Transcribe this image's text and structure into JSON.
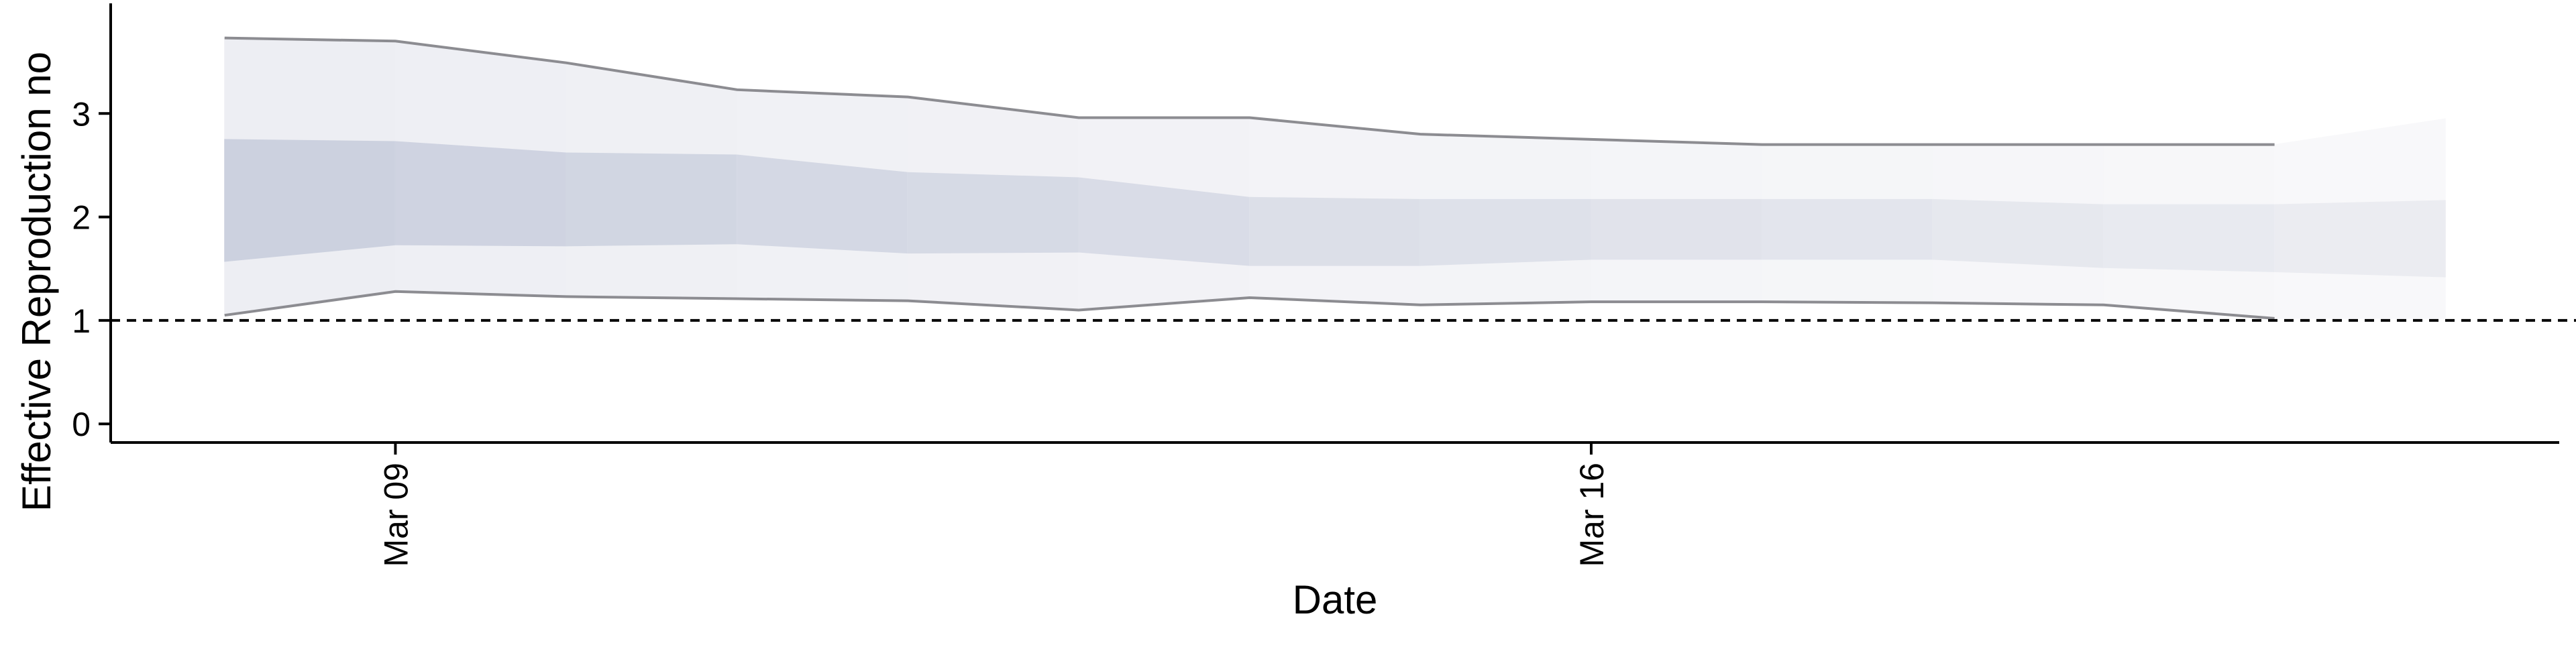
{
  "chart_data": {
    "type": "area",
    "title": "",
    "xlabel": "Date",
    "ylabel": "Effective Reproduction no",
    "x_ticks": [
      "Mar 09",
      "Mar 16"
    ],
    "x_tick_values": [
      "2020-03-09",
      "2020-03-16"
    ],
    "y_ticks": [
      "0",
      "1",
      "2",
      "3"
    ],
    "y_tick_values": [
      0,
      1,
      2,
      3
    ],
    "ylim": [
      -0.18,
      4.0
    ],
    "xlim": [
      "2020-03-07T08:00",
      "2020-03-21T16:00"
    ],
    "grid": false,
    "legend": "none",
    "reference_line": {
      "y": 1,
      "style": "dashed"
    },
    "dates": [
      "2020-03-08",
      "2020-03-09",
      "2020-03-10",
      "2020-03-11",
      "2020-03-12",
      "2020-03-13",
      "2020-03-14",
      "2020-03-15",
      "2020-03-16",
      "2020-03-17",
      "2020-03-18",
      "2020-03-19",
      "2020-03-20",
      "2020-03-21"
    ],
    "series": [
      {
        "role": "upper_95",
        "values": [
          3.73,
          3.7,
          3.49,
          3.23,
          3.16,
          2.96,
          2.96,
          2.8,
          2.75,
          2.7,
          2.7,
          2.7,
          2.7,
          2.95
        ]
      },
      {
        "role": "upper_50",
        "values": [
          2.75,
          2.73,
          2.62,
          2.6,
          2.43,
          2.38,
          2.19,
          2.17,
          2.17,
          2.17,
          2.17,
          2.12,
          2.12,
          2.16
        ]
      },
      {
        "role": "lower_50",
        "values": [
          1.57,
          1.73,
          1.72,
          1.74,
          1.65,
          1.66,
          1.53,
          1.53,
          1.59,
          1.59,
          1.59,
          1.51,
          1.47,
          1.42
        ]
      },
      {
        "role": "lower_95",
        "values": [
          1.05,
          1.28,
          1.23,
          1.21,
          1.19,
          1.1,
          1.22,
          1.15,
          1.18,
          1.18,
          1.17,
          1.15,
          1.02,
          1.02
        ]
      }
    ],
    "colors": {
      "outer_band": "#edeef3",
      "inner_band": "#ccd1df",
      "outer_band_late": "#f8f8fa",
      "inner_band_late": "#ebecf1",
      "bound_line": "#8c8c91",
      "axis": "#000000"
    }
  }
}
